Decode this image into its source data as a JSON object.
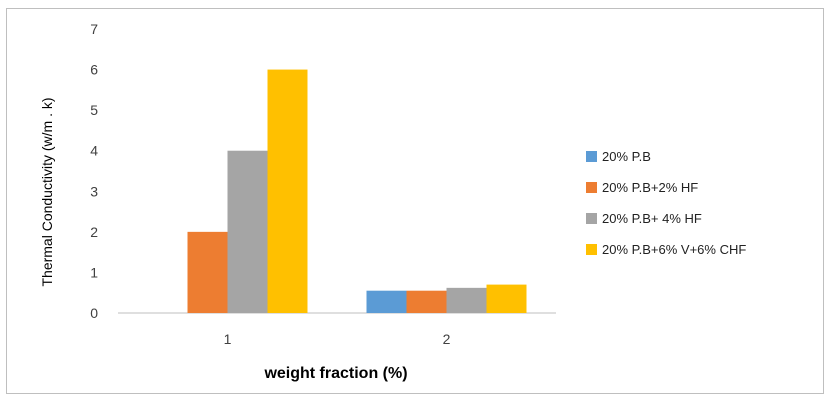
{
  "chart_data": {
    "type": "bar",
    "title": "",
    "xlabel": "weight fraction (%)",
    "ylabel": "Thermal Conductivity (w/m . k)",
    "categories": [
      "1",
      "2"
    ],
    "ylim": [
      0,
      7
    ],
    "yticks": [
      0,
      1,
      2,
      3,
      4,
      5,
      6,
      7
    ],
    "grid": false,
    "legend_position": "right",
    "series": [
      {
        "name": "20% P.B",
        "color": "#5b9bd5",
        "values": [
          0,
          0.55
        ]
      },
      {
        "name": "20% P.B+2% HF",
        "color": "#ed7d31",
        "values": [
          2,
          0.55
        ]
      },
      {
        "name": "20% P.B+ 4% HF",
        "color": "#a5a5a5",
        "values": [
          4,
          0.62
        ]
      },
      {
        "name": "20% P.B+6% V+6% CHF",
        "color": "#ffc000",
        "values": [
          6,
          0.7
        ]
      }
    ]
  }
}
